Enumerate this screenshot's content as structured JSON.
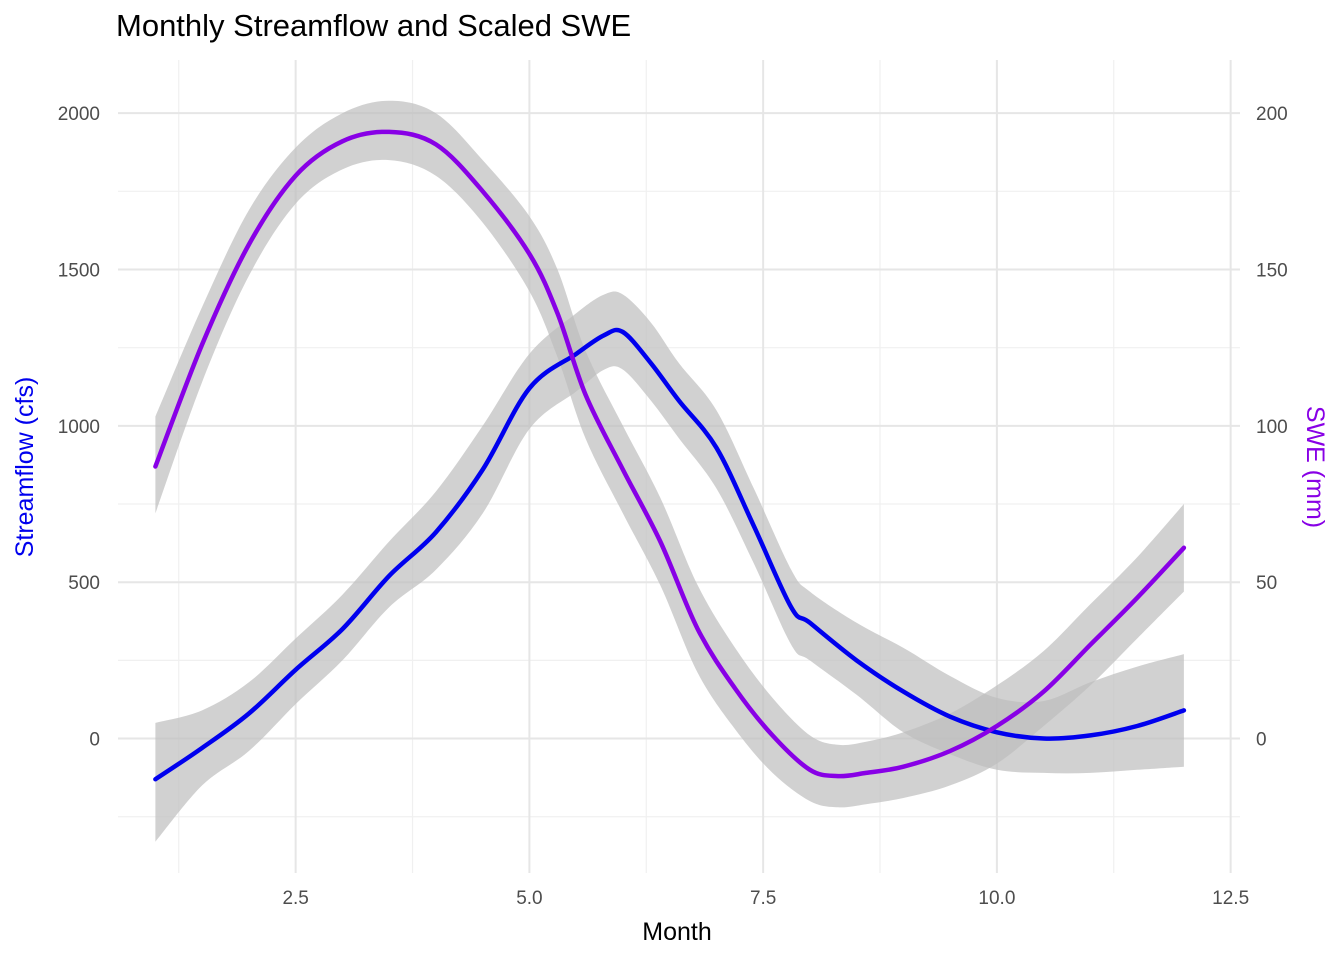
{
  "chart_data": {
    "type": "line",
    "title": "Monthly Streamflow and Scaled SWE",
    "xlabel": "Month",
    "ylabel": "Streamflow (cfs)",
    "y2label": "SWE (mm)",
    "xlim": [
      0.6,
      12.6
    ],
    "ylim": [
      -430,
      2170
    ],
    "y2lim": [
      -43,
      217
    ],
    "x_ticks": [
      2.5,
      5.0,
      7.5,
      10.0,
      12.5
    ],
    "x_tick_labels": [
      "2.5",
      "5.0",
      "7.5",
      "10.0",
      "12.5"
    ],
    "x_minor": [
      1.25,
      3.75,
      6.25,
      8.75,
      11.25
    ],
    "y_ticks": [
      0,
      500,
      1000,
      1500,
      2000
    ],
    "y_tick_labels": [
      "0",
      "500",
      "1000",
      "1500",
      "2000"
    ],
    "y_minor": [
      -250,
      250,
      750,
      1250,
      1750
    ],
    "y2_ticks": [
      0,
      50,
      100,
      150,
      200
    ],
    "y2_tick_labels": [
      "0",
      "50",
      "100",
      "150",
      "200"
    ],
    "grid": true,
    "colors": {
      "streamflow": "#0000ee",
      "swe": "#8800e6",
      "ribbon": "#bdbdbd",
      "grid_major": "#e6e6e6",
      "grid_minor": "#f0f0f0"
    },
    "series": [
      {
        "axis": "left",
        "x": [
          1.0,
          1.5,
          2.0,
          2.5,
          3.0,
          3.5,
          4.0,
          4.5,
          5.0,
          5.5,
          5.8,
          6.0,
          6.3,
          6.6,
          7.0,
          7.4,
          7.8,
          8.0,
          8.5,
          9.0,
          9.5,
          10.0,
          10.5,
          11.0,
          11.5,
          12.0
        ],
        "y": [
          -130,
          -30,
          80,
          220,
          350,
          520,
          660,
          860,
          1120,
          1230,
          1290,
          1300,
          1200,
          1080,
          930,
          680,
          420,
          370,
          250,
          150,
          70,
          20,
          0,
          10,
          40,
          90
        ],
        "upper": [
          50,
          90,
          180,
          320,
          460,
          630,
          790,
          1000,
          1230,
          1360,
          1420,
          1420,
          1330,
          1200,
          1050,
          800,
          540,
          470,
          370,
          290,
          200,
          130,
          120,
          180,
          230,
          270
        ],
        "lower": [
          -330,
          -150,
          -40,
          110,
          250,
          420,
          540,
          720,
          990,
          1110,
          1180,
          1180,
          1080,
          960,
          800,
          560,
          300,
          250,
          140,
          20,
          -50,
          -100,
          -110,
          -110,
          -100,
          -90
        ]
      },
      {
        "axis": "right",
        "x": [
          1.0,
          1.5,
          2.0,
          2.5,
          3.0,
          3.5,
          4.0,
          4.5,
          5.0,
          5.3,
          5.6,
          6.0,
          6.4,
          6.8,
          7.2,
          7.6,
          8.0,
          8.3,
          8.6,
          9.0,
          9.5,
          10.0,
          10.5,
          11.0,
          11.5,
          12.0
        ],
        "y": [
          87,
          126,
          158,
          180,
          191,
          194,
          190,
          175,
          155,
          136,
          110,
          86,
          63,
          35,
          16,
          1,
          -10,
          -12,
          -11,
          -9,
          -4,
          4,
          15,
          30,
          45,
          61
        ],
        "upper": [
          103,
          138,
          169,
          189,
          200,
          204,
          200,
          185,
          167,
          150,
          124,
          100,
          77,
          49,
          29,
          13,
          1,
          -2,
          -1,
          2,
          8,
          17,
          28,
          43,
          58,
          75
        ],
        "lower": [
          72,
          114,
          148,
          171,
          182,
          185,
          180,
          165,
          143,
          122,
          96,
          72,
          49,
          21,
          3,
          -11,
          -20,
          -22,
          -21,
          -19,
          -15,
          -8,
          4,
          17,
          32,
          47
        ]
      }
    ]
  }
}
